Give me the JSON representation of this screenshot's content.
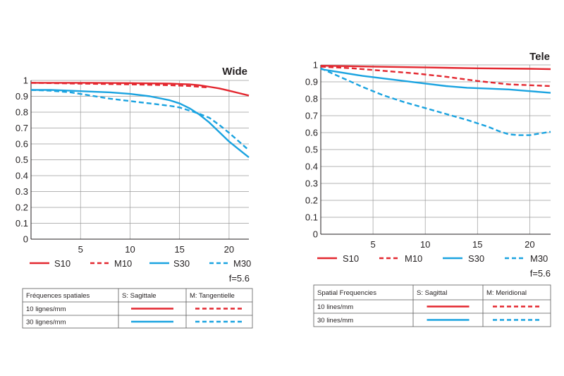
{
  "chart_data": [
    {
      "type": "line",
      "title": "Wide",
      "xlabel": "",
      "ylabel": "",
      "xlim": [
        0,
        22
      ],
      "ylim": [
        0,
        1
      ],
      "x_ticks": [
        "5",
        "10",
        "15",
        "20"
      ],
      "x_tick_values": [
        5,
        10,
        15,
        20
      ],
      "y_ticks": [
        "0",
        "0.1",
        "0.2",
        "0.3",
        "0.4",
        "0.5",
        "0.6",
        "0.7",
        "0.8",
        "0.9",
        "1"
      ],
      "y_tick_values": [
        0,
        0.1,
        0.2,
        0.3,
        0.4,
        0.5,
        0.6,
        0.7,
        0.8,
        0.9,
        1
      ],
      "grid": true,
      "legend_position": "bottom",
      "annotation": "f=5.6",
      "series": [
        {
          "name": "S10",
          "color": "#e3272f",
          "dash": "solid",
          "x": [
            0,
            5,
            10,
            14,
            16,
            17,
            18,
            19,
            20,
            21,
            22
          ],
          "y": [
            0.985,
            0.985,
            0.983,
            0.98,
            0.975,
            0.97,
            0.96,
            0.95,
            0.935,
            0.92,
            0.905
          ]
        },
        {
          "name": "M10",
          "color": "#e3272f",
          "dash": "dashed",
          "x": [
            0,
            5,
            10,
            14,
            16,
            17,
            18
          ],
          "y": [
            0.985,
            0.98,
            0.975,
            0.97,
            0.965,
            0.96,
            0.955
          ]
        },
        {
          "name": "S30",
          "color": "#1aa3e0",
          "dash": "solid",
          "x": [
            0,
            2,
            4,
            6,
            8,
            10,
            12,
            14,
            15,
            16,
            17,
            18,
            19,
            20,
            21,
            22
          ],
          "y": [
            0.94,
            0.94,
            0.935,
            0.93,
            0.925,
            0.915,
            0.9,
            0.875,
            0.855,
            0.825,
            0.785,
            0.735,
            0.675,
            0.615,
            0.565,
            0.515
          ]
        },
        {
          "name": "M30",
          "color": "#1aa3e0",
          "dash": "dashed",
          "x": [
            0,
            2,
            4,
            6,
            8,
            10,
            12,
            14,
            15,
            16,
            17,
            18,
            19,
            20,
            21,
            22
          ],
          "y": [
            0.94,
            0.935,
            0.925,
            0.905,
            0.885,
            0.87,
            0.855,
            0.84,
            0.83,
            0.81,
            0.79,
            0.765,
            0.72,
            0.67,
            0.615,
            0.56
          ]
        }
      ],
      "legend": {
        "S10": "S10",
        "M10": "M10",
        "S30": "S30",
        "M30": "M30"
      },
      "table": {
        "headers": [
          "Fréquences spatiales",
          "S: Sagittale",
          "M: Tangentielle"
        ],
        "rows": [
          "10 lignes/mm",
          "30 lignes/mm"
        ]
      }
    },
    {
      "type": "line",
      "title": "Tele",
      "xlabel": "",
      "ylabel": "",
      "xlim": [
        0,
        22
      ],
      "ylim": [
        0,
        1
      ],
      "x_ticks": [
        "5",
        "10",
        "15",
        "20"
      ],
      "x_tick_values": [
        5,
        10,
        15,
        20
      ],
      "y_ticks": [
        "0",
        "0.1",
        "0.2",
        "0.3",
        "0.4",
        "0.5",
        "0.6",
        "0.7",
        "0.8",
        "0.9",
        "1"
      ],
      "y_tick_values": [
        0,
        0.1,
        0.2,
        0.3,
        0.4,
        0.5,
        0.6,
        0.7,
        0.8,
        0.9,
        1
      ],
      "grid": true,
      "legend_position": "bottom",
      "annotation": "f=5.6",
      "series": [
        {
          "name": "S10",
          "color": "#e3272f",
          "dash": "solid",
          "x": [
            0,
            5,
            10,
            15,
            20,
            22
          ],
          "y": [
            0.995,
            0.99,
            0.985,
            0.98,
            0.977,
            0.975
          ]
        },
        {
          "name": "M10",
          "color": "#e3272f",
          "dash": "dashed",
          "x": [
            0,
            3,
            6,
            9,
            12,
            15,
            18,
            20,
            22
          ],
          "y": [
            0.99,
            0.98,
            0.965,
            0.95,
            0.93,
            0.905,
            0.885,
            0.88,
            0.875
          ]
        },
        {
          "name": "S30",
          "color": "#1aa3e0",
          "dash": "solid",
          "x": [
            0,
            2,
            4,
            6,
            8,
            10,
            12,
            14,
            16,
            18,
            20,
            22
          ],
          "y": [
            0.975,
            0.955,
            0.935,
            0.92,
            0.905,
            0.89,
            0.875,
            0.865,
            0.86,
            0.855,
            0.845,
            0.835
          ]
        },
        {
          "name": "M30",
          "color": "#1aa3e0",
          "dash": "dashed",
          "x": [
            0,
            2,
            4,
            6,
            8,
            10,
            12,
            14,
            16,
            17,
            18,
            19,
            20,
            21,
            22
          ],
          "y": [
            0.98,
            0.925,
            0.87,
            0.82,
            0.78,
            0.745,
            0.71,
            0.675,
            0.635,
            0.61,
            0.59,
            0.585,
            0.585,
            0.595,
            0.605
          ]
        }
      ],
      "legend": {
        "S10": "S10",
        "M10": "M10",
        "S30": "S30",
        "M30": "M30"
      },
      "table": {
        "headers": [
          "Spatial Frequencies",
          "S: Sagittal",
          "M: Meridional"
        ],
        "rows": [
          "10 lines/mm",
          "30 lines/mm"
        ]
      }
    }
  ]
}
